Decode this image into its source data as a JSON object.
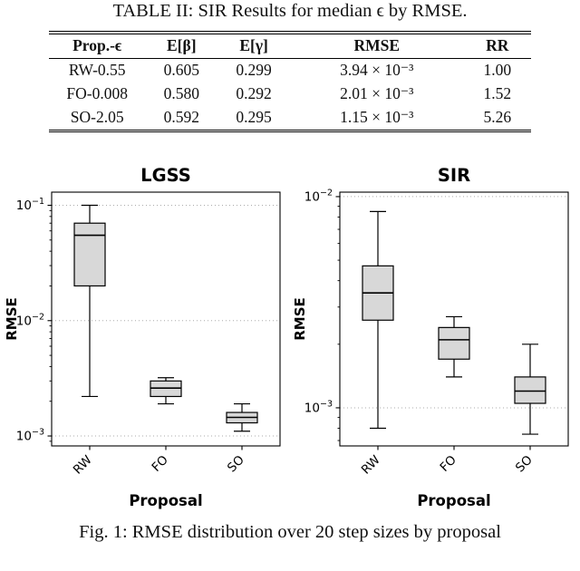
{
  "page": {
    "table_title": "TABLE II: SIR Results for median ϵ by RMSE.",
    "figure_caption": "Fig. 1: RMSE distribution over 20 step sizes by proposal"
  },
  "table": {
    "headers": [
      "Prop.-ϵ",
      "E[β]",
      "E[γ]",
      "RMSE",
      "RR"
    ],
    "rows": [
      [
        "RW-0.55",
        "0.605",
        "0.299",
        "3.94 × 10⁻³",
        "1.00"
      ],
      [
        "FO-0.008",
        "0.580",
        "0.292",
        "2.01 × 10⁻³",
        "1.52"
      ],
      [
        "SO-2.05",
        "0.592",
        "0.295",
        "1.15 × 10⁻³",
        "5.26"
      ]
    ]
  },
  "chart_data": [
    {
      "type": "boxplot",
      "title": "LGSS",
      "xlabel": "Proposal",
      "ylabel": "RMSE",
      "yscale": "log",
      "ylim": [
        0.00082,
        0.13
      ],
      "grid": true,
      "box_fill": "#d8d8d8",
      "box_edge": "#000000",
      "categories": [
        "RW",
        "FO",
        "SO"
      ],
      "boxes": [
        {
          "whislo": 0.0022,
          "q1": 0.02,
          "med": 0.055,
          "q3": 0.07,
          "whishi": 0.1
        },
        {
          "whislo": 0.0019,
          "q1": 0.0022,
          "med": 0.0026,
          "q3": 0.003,
          "whishi": 0.0032
        },
        {
          "whislo": 0.0011,
          "q1": 0.0013,
          "med": 0.00145,
          "q3": 0.0016,
          "whishi": 0.0019
        }
      ]
    },
    {
      "type": "boxplot",
      "title": "SIR",
      "xlabel": "Proposal",
      "ylabel": "RMSE",
      "yscale": "log",
      "ylim": [
        0.00066,
        0.0105
      ],
      "grid": true,
      "box_fill": "#d8d8d8",
      "box_edge": "#000000",
      "categories": [
        "RW",
        "FO",
        "SO"
      ],
      "boxes": [
        {
          "whislo": 0.0008,
          "q1": 0.0026,
          "med": 0.0035,
          "q3": 0.0047,
          "whishi": 0.0085
        },
        {
          "whislo": 0.0014,
          "q1": 0.0017,
          "med": 0.0021,
          "q3": 0.0024,
          "whishi": 0.0027
        },
        {
          "whislo": 0.00075,
          "q1": 0.00105,
          "med": 0.0012,
          "q3": 0.0014,
          "whishi": 0.002
        }
      ]
    }
  ]
}
